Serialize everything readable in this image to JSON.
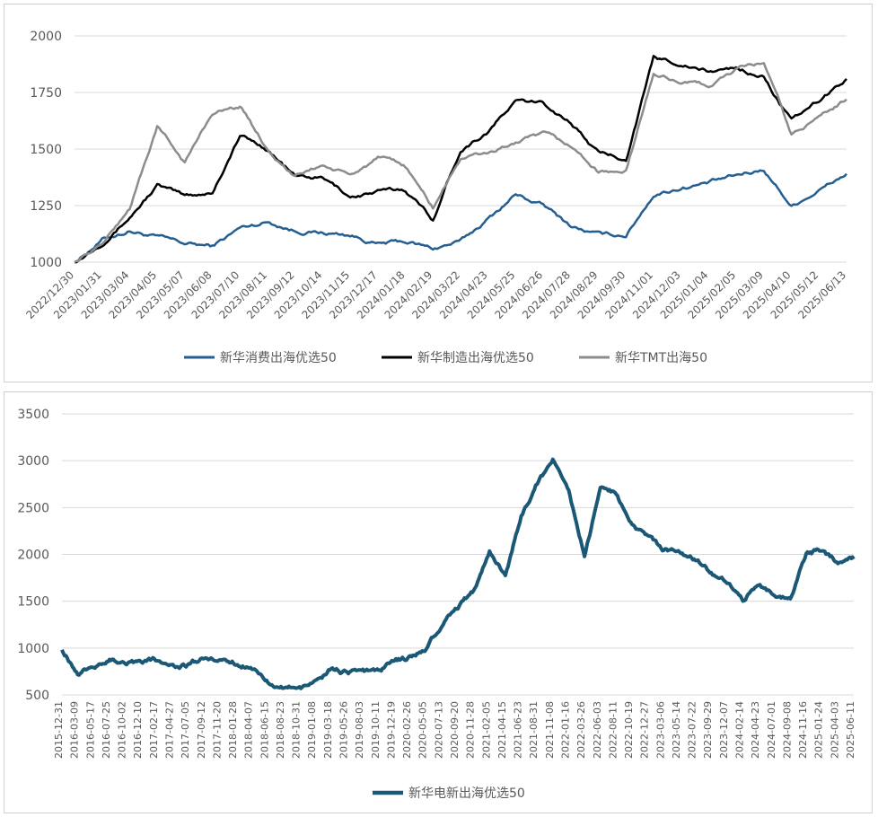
{
  "chart_data": [
    {
      "type": "line",
      "title": "",
      "xlabel": "",
      "ylabel": "",
      "ylim": [
        1000,
        2000
      ],
      "yticks": [
        1000,
        1250,
        1500,
        1750,
        2000
      ],
      "grid": true,
      "legend_position": "bottom",
      "x_ticks": [
        "2022/12/30",
        "2023/01/31",
        "2023/03/04",
        "2023/04/05",
        "2023/05/07",
        "2023/06/08",
        "2023/07/10",
        "2023/08/11",
        "2023/09/12",
        "2023/10/14",
        "2023/11/15",
        "2023/12/17",
        "2024/01/18",
        "2024/02/19",
        "2024/03/22",
        "2024/04/23",
        "2024/05/25",
        "2024/06/26",
        "2024/07/28",
        "2024/08/29",
        "2024/09/30",
        "2024/11/01",
        "2024/12/03",
        "2025/01/04",
        "2025/02/05",
        "2025/03/09",
        "2025/04/10",
        "2025/05/12",
        "2025/06/13"
      ],
      "series": [
        {
          "name": "新华消费出海优选50",
          "color": "#255E91",
          "values": [
            1000,
            1100,
            1140,
            1110,
            1080,
            1070,
            1150,
            1180,
            1140,
            1130,
            1120,
            1080,
            1090,
            1060,
            1090,
            1190,
            1300,
            1250,
            1160,
            1120,
            1120,
            1300,
            1330,
            1350,
            1380,
            1410,
            1250,
            1320,
            1390
          ]
        },
        {
          "name": "新华制造出海优选50",
          "color": "#000000",
          "values": [
            1000,
            1090,
            1200,
            1340,
            1290,
            1310,
            1560,
            1500,
            1380,
            1370,
            1290,
            1310,
            1320,
            1190,
            1500,
            1580,
            1710,
            1700,
            1620,
            1480,
            1460,
            1900,
            1880,
            1840,
            1860,
            1820,
            1620,
            1710,
            1810
          ]
        },
        {
          "name": "新华TMT出海50",
          "color": "#8C8C8C",
          "values": [
            1000,
            1080,
            1240,
            1600,
            1440,
            1660,
            1690,
            1500,
            1380,
            1430,
            1380,
            1460,
            1420,
            1240,
            1460,
            1480,
            1530,
            1560,
            1510,
            1400,
            1400,
            1830,
            1800,
            1780,
            1850,
            1880,
            1560,
            1640,
            1720
          ]
        }
      ]
    },
    {
      "type": "line",
      "title": "",
      "xlabel": "",
      "ylabel": "",
      "ylim": [
        500,
        3500
      ],
      "yticks": [
        500,
        1000,
        1500,
        2000,
        2500,
        3000,
        3500
      ],
      "grid": true,
      "legend_position": "bottom",
      "x_ticks": [
        "2015-12-31",
        "2016-03-09",
        "2016-05-17",
        "2016-07-25",
        "2016-10-02",
        "2016-12-10",
        "2017-02-17",
        "2017-04-27",
        "2017-07-05",
        "2017-09-12",
        "2017-11-20",
        "2018-01-28",
        "2018-04-07",
        "2018-06-15",
        "2018-08-23",
        "2018-10-31",
        "2019-01-08",
        "2019-03-18",
        "2019-05-26",
        "2019-08-03",
        "2019-10-11",
        "2019-12-19",
        "2020-02-26",
        "2020-05-05",
        "2020-07-13",
        "2020-09-20",
        "2020-11-28",
        "2021-02-05",
        "2021-04-15",
        "2021-06-23",
        "2021-08-31",
        "2021-11-08",
        "2022-01-16",
        "2022-03-26",
        "2022-06-03",
        "2022-08-11",
        "2022-10-19",
        "2022-12-27",
        "2023-03-06",
        "2023-05-14",
        "2023-07-22",
        "2023-09-29",
        "2023-12-07",
        "2024-02-14",
        "2024-04-23",
        "2024-07-01",
        "2024-09-08",
        "2024-11-16",
        "2025-01-24",
        "2025-04-03",
        "2025-06-11"
      ],
      "series": [
        {
          "name": "新华电新出海优选50",
          "color": "#1B5876",
          "values": [
            1000,
            740,
            820,
            880,
            860,
            860,
            860,
            820,
            820,
            890,
            900,
            840,
            780,
            670,
            600,
            560,
            620,
            780,
            730,
            740,
            750,
            870,
            900,
            1000,
            1260,
            1420,
            1600,
            2050,
            1800,
            2400,
            2750,
            3000,
            2700,
            2000,
            2700,
            2650,
            2300,
            2200,
            2050,
            2000,
            1950,
            1800,
            1700,
            1500,
            1700,
            1550,
            1550,
            2000,
            2050,
            1900,
            1950
          ]
        }
      ]
    }
  ]
}
